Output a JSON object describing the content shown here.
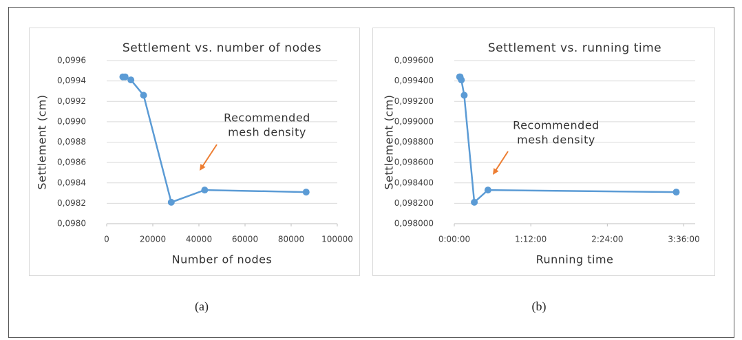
{
  "chart_data": [
    {
      "type": "line",
      "title": "Settlement vs. number of nodes",
      "x_label": "Number of nodes",
      "y_label": "Settlement (cm)",
      "annotation": [
        "Recommended",
        "mesh density"
      ],
      "caption": "(a)",
      "color": "#5b9bd5",
      "annotation_color": "#ed7d31",
      "grid": true,
      "x": [
        7000,
        8000,
        10500,
        16000,
        28000,
        42500,
        86500
      ],
      "values": [
        0.09944,
        0.09944,
        0.09941,
        0.09926,
        0.09821,
        0.09833,
        0.09831
      ],
      "xlim": [
        0,
        100000
      ],
      "xticks": [
        0,
        20000,
        40000,
        60000,
        80000,
        100000
      ],
      "ylim": [
        0.098,
        0.0996
      ],
      "yticks": [
        {
          "value": 0.098,
          "label": "0,0980"
        },
        {
          "value": 0.0982,
          "label": "0,0982"
        },
        {
          "value": 0.0984,
          "label": "0,0984"
        },
        {
          "value": 0.0986,
          "label": "0,0986"
        },
        {
          "value": 0.0988,
          "label": "0,0988"
        },
        {
          "value": 0.099,
          "label": "0,0990"
        },
        {
          "value": 0.0992,
          "label": "0,0992"
        },
        {
          "value": 0.0994,
          "label": "0,0994"
        },
        {
          "value": 0.0996,
          "label": "0,0996"
        }
      ]
    },
    {
      "type": "line",
      "title": "Settlement vs. running time",
      "x_label": "Running time",
      "y_label": "Settlement (cm)",
      "annotation": [
        "Recommended",
        "mesh density"
      ],
      "caption": "(b)",
      "color": "#5b9bd5",
      "annotation_color": "#ed7d31",
      "grid": true,
      "x": [
        300,
        330,
        400,
        560,
        1130,
        1900,
        12530
      ],
      "values": [
        0.09944,
        0.09944,
        0.09941,
        0.09926,
        0.09821,
        0.09833,
        0.09831
      ],
      "xlim": [
        0,
        13600
      ],
      "xticks": [
        {
          "value": 0,
          "label": "0:00:00"
        },
        {
          "value": 4320,
          "label": "1:12:00"
        },
        {
          "value": 8640,
          "label": "2:24:00"
        },
        {
          "value": 12960,
          "label": "3:36:00"
        }
      ],
      "ylim": [
        0.098,
        0.0996
      ],
      "yticks": [
        {
          "value": 0.098,
          "label": "0,098000"
        },
        {
          "value": 0.0982,
          "label": "0,098200"
        },
        {
          "value": 0.0984,
          "label": "0,098400"
        },
        {
          "value": 0.0986,
          "label": "0,098600"
        },
        {
          "value": 0.0988,
          "label": "0,098800"
        },
        {
          "value": 0.099,
          "label": "0,099000"
        },
        {
          "value": 0.0992,
          "label": "0,099200"
        },
        {
          "value": 0.0994,
          "label": "0,099400"
        },
        {
          "value": 0.0996,
          "label": "0,099600"
        }
      ]
    }
  ]
}
